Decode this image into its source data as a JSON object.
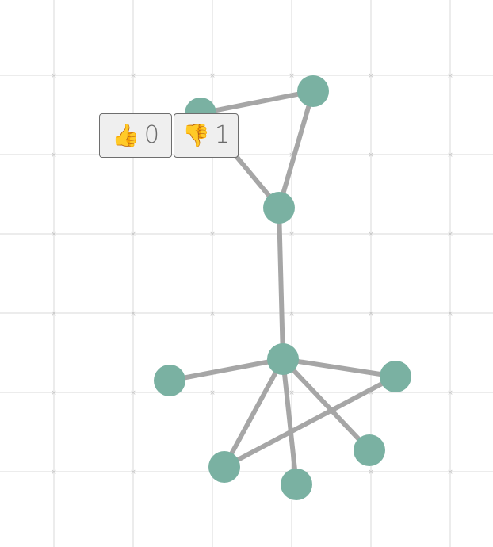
{
  "diagram": {
    "node_color": "#7ab1a2",
    "edge_color": "#a6a6a6",
    "grid_color": "#ececec",
    "nodes": [
      {
        "id": "n1"
      },
      {
        "id": "n2"
      },
      {
        "id": "n3"
      },
      {
        "id": "n4"
      },
      {
        "id": "n5"
      },
      {
        "id": "n6"
      },
      {
        "id": "n7"
      },
      {
        "id": "n8"
      },
      {
        "id": "n9"
      },
      {
        "id": "n10"
      }
    ],
    "edges": [
      [
        "n1",
        "n2"
      ],
      [
        "n2",
        "n3"
      ],
      [
        "n1",
        "n3"
      ],
      [
        "n3",
        "n4"
      ],
      [
        "n4",
        "n5"
      ],
      [
        "n4",
        "n6"
      ],
      [
        "n4",
        "n7"
      ],
      [
        "n4",
        "n8"
      ],
      [
        "n4",
        "n9"
      ],
      [
        "n9",
        "n6"
      ]
    ]
  },
  "votes": {
    "like_icon": "thumbs-up-icon",
    "like_glyph": "👍",
    "like_count": "0",
    "dislike_icon": "thumbs-down-icon",
    "dislike_glyph": "👎",
    "dislike_count": "1"
  }
}
